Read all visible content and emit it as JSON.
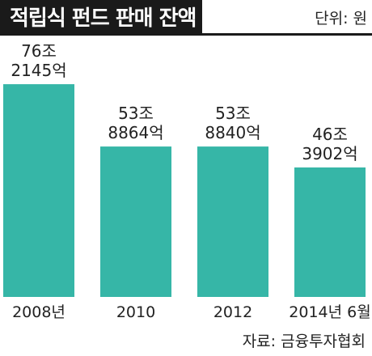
{
  "chart_data": {
    "type": "bar",
    "title": "적립식 펀드 판매 잔액",
    "unit_label": "단위: 원",
    "source": "자료: 금융투자협회",
    "categories": [
      "2008년",
      "2010",
      "2012",
      "2014년 6월"
    ],
    "values": [
      76.2145,
      53.8864,
      53.884,
      46.3902
    ],
    "value_labels": [
      [
        "76조",
        "2145억"
      ],
      [
        "53조",
        "8864억"
      ],
      [
        "53조",
        "8840억"
      ],
      [
        "46조",
        "3902억"
      ]
    ],
    "ylim": [
      0,
      100
    ],
    "grid": false,
    "colors": {
      "bar": "#36b6a7",
      "header": "#1a1a1a"
    }
  }
}
